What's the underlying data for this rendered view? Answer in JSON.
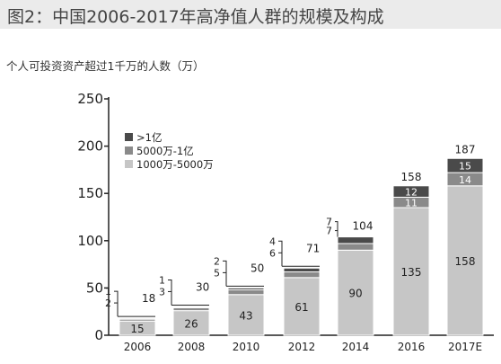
{
  "title": "图2：中国2006-2017年高净值人群的规模及构成",
  "subtitle": "个人可投资资产超过1千万的人数（万）",
  "colors": {
    "low": "#c6c6c6",
    "mid": "#8a8a8a",
    "high": "#4a4a4a",
    "axis": "#222222",
    "header_bg": "#ebebeb"
  },
  "chart_data": {
    "type": "bar",
    "stacked": true,
    "categories": [
      "2006",
      "2008",
      "2010",
      "2012",
      "2014",
      "2016",
      "2017E"
    ],
    "series": [
      {
        "name": "1000万-5000万",
        "values": [
          15,
          26,
          43,
          61,
          90,
          135,
          158
        ]
      },
      {
        "name": "5000万-1亿",
        "values": [
          2,
          3,
          5,
          6,
          7,
          11,
          14
        ]
      },
      {
        "name": ">1亿",
        "values": [
          1,
          1,
          2,
          4,
          7,
          12,
          15
        ]
      }
    ],
    "totals": [
      18,
      30,
      50,
      71,
      104,
      158,
      187
    ],
    "ylim": [
      0,
      250
    ],
    "yticks": [
      0,
      50,
      100,
      150,
      200,
      250
    ],
    "legend_position": "top-left",
    "grid": false
  }
}
